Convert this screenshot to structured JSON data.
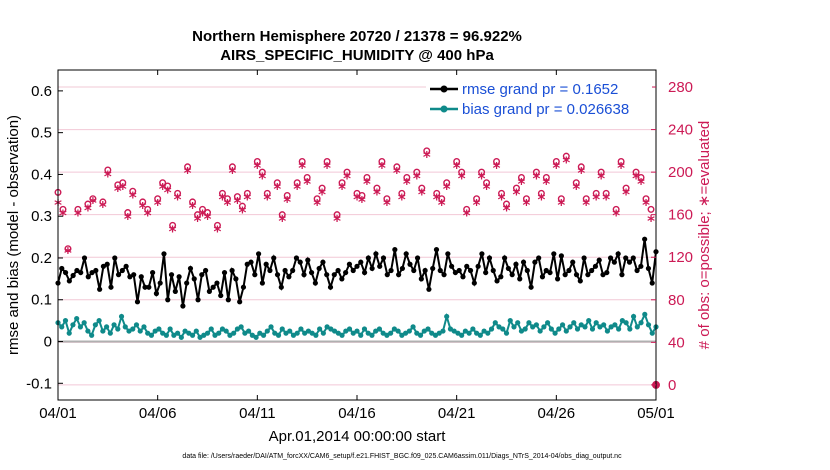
{
  "chart_data": {
    "type": "line",
    "title": "Northern Hemisphere 20720 / 21378 = 96.922%",
    "subtitle": "AIRS_SPECIFIC_HUMIDITY @ 400 hPa",
    "xlabel": "Apr.01,2014 00:00:00 start",
    "ylabel": "rmse and bias (model - observation)",
    "y2label": "# of obs: o=possible; ∗=evaluated",
    "footnote": "data file: /Users/raeder/DAI/ATM_forcXX/CAM6_setup/f.e21.FHIST_BGC.f09_025.CAM6assim.011/Diags_NTrS_2014-04/obs_diag_output.nc",
    "xlim": [
      0,
      30
    ],
    "ylim": [
      -0.14,
      0.65
    ],
    "y2lim": [
      -14.2,
      296
    ],
    "x_ticks": [
      0,
      5,
      10,
      15,
      20,
      25,
      30
    ],
    "x_tick_labels": [
      "04/01",
      "04/06",
      "04/11",
      "04/16",
      "04/21",
      "04/26",
      "05/01"
    ],
    "y_ticks": [
      -0.1,
      0,
      0.1,
      0.2,
      0.3,
      0.4,
      0.5,
      0.6
    ],
    "y_tick_labels": [
      "-0.1",
      "0",
      "0.1",
      "0.2",
      "0.3",
      "0.4",
      "0.5",
      "0.6"
    ],
    "y2_ticks": [
      0,
      40,
      80,
      120,
      160,
      200,
      240,
      280
    ],
    "y2_tick_labels": [
      "0",
      "40",
      "80",
      "120",
      "160",
      "200",
      "240",
      "280"
    ],
    "legend_position": "top-right",
    "colors": {
      "rmse": "#000000",
      "bias": "#0f8a8a",
      "obs": "#cc1a55",
      "zero_line": "#b0b0b0",
      "grid": "#f2c8d6",
      "legend_text": "#1a4fd6"
    },
    "series": [
      {
        "name": "rmse grand pr = 0.1652",
        "color": "#000000",
        "axis": "left",
        "values": [
          0.14,
          0.175,
          0.165,
          0.145,
          0.158,
          0.17,
          0.165,
          0.2,
          0.155,
          0.165,
          0.17,
          0.125,
          0.18,
          0.185,
          0.13,
          0.2,
          0.16,
          0.17,
          0.18,
          0.155,
          0.16,
          0.095,
          0.155,
          0.13,
          0.13,
          0.165,
          0.115,
          0.14,
          0.21,
          0.1,
          0.16,
          0.12,
          0.155,
          0.085,
          0.14,
          0.175,
          0.15,
          0.1,
          0.16,
          0.17,
          0.12,
          0.13,
          0.14,
          0.11,
          0.165,
          0.1,
          0.17,
          0.15,
          0.095,
          0.13,
          0.185,
          0.19,
          0.16,
          0.21,
          0.14,
          0.185,
          0.17,
          0.2,
          0.16,
          0.13,
          0.17,
          0.155,
          0.17,
          0.2,
          0.19,
          0.16,
          0.195,
          0.165,
          0.14,
          0.175,
          0.19,
          0.16,
          0.13,
          0.16,
          0.17,
          0.15,
          0.165,
          0.185,
          0.17,
          0.18,
          0.19,
          0.165,
          0.2,
          0.175,
          0.21,
          0.18,
          0.2,
          0.16,
          0.17,
          0.22,
          0.16,
          0.175,
          0.21,
          0.185,
          0.17,
          0.2,
          0.15,
          0.17,
          0.125,
          0.175,
          0.22,
          0.17,
          0.16,
          0.21,
          0.18,
          0.165,
          0.17,
          0.155,
          0.18,
          0.17,
          0.14,
          0.18,
          0.21,
          0.165,
          0.2,
          0.17,
          0.145,
          0.155,
          0.2,
          0.175,
          0.16,
          0.185,
          0.15,
          0.19,
          0.17,
          0.13,
          0.19,
          0.2,
          0.155,
          0.17,
          0.165,
          0.21,
          0.15,
          0.205,
          0.16,
          0.17,
          0.19,
          0.16,
          0.145,
          0.2,
          0.16,
          0.17,
          0.18,
          0.195,
          0.16,
          0.165,
          0.2,
          0.19,
          0.21,
          0.16,
          0.2,
          0.19,
          0.2,
          0.17,
          0.18,
          0.245,
          0.175,
          0.14,
          0.215
        ]
      },
      {
        "name": "bias grand pr = 0.026638",
        "color": "#0f8a8a",
        "axis": "left",
        "values": [
          0.045,
          0.035,
          0.05,
          0.02,
          0.04,
          0.055,
          0.035,
          0.045,
          0.025,
          0.015,
          0.04,
          0.05,
          0.025,
          0.035,
          0.02,
          0.04,
          0.03,
          0.06,
          0.035,
          0.025,
          0.03,
          0.04,
          0.025,
          0.035,
          0.02,
          0.015,
          0.025,
          0.03,
          0.02,
          0.015,
          0.03,
          0.015,
          0.02,
          0.01,
          0.025,
          0.02,
          0.015,
          0.025,
          0.01,
          0.015,
          0.02,
          0.03,
          0.015,
          0.02,
          0.03,
          0.025,
          0.015,
          0.02,
          0.03,
          0.035,
          0.02,
          0.025,
          0.015,
          0.01,
          0.02,
          0.015,
          0.025,
          0.035,
          0.02,
          0.015,
          0.03,
          0.02,
          0.025,
          0.015,
          0.02,
          0.03,
          0.02,
          0.025,
          0.02,
          0.015,
          0.03,
          0.02,
          0.035,
          0.03,
          0.025,
          0.02,
          0.015,
          0.025,
          0.03,
          0.02,
          0.025,
          0.015,
          0.03,
          0.02,
          0.015,
          0.025,
          0.03,
          0.02,
          0.015,
          0.02,
          0.03,
          0.025,
          0.015,
          0.02,
          0.025,
          0.035,
          0.02,
          0.015,
          0.025,
          0.03,
          0.02,
          0.015,
          0.02,
          0.025,
          0.06,
          0.03,
          0.025,
          0.02,
          0.015,
          0.025,
          0.02,
          0.03,
          0.02,
          0.015,
          0.025,
          0.02,
          0.03,
          0.045,
          0.035,
          0.03,
          0.02,
          0.05,
          0.035,
          0.045,
          0.025,
          0.03,
          0.045,
          0.035,
          0.04,
          0.025,
          0.035,
          0.045,
          0.03,
          0.02,
          0.03,
          0.04,
          0.025,
          0.035,
          0.045,
          0.03,
          0.04,
          0.035,
          0.05,
          0.03,
          0.045,
          0.035,
          0.04,
          0.025,
          0.035,
          0.04,
          0.03,
          0.05,
          0.045,
          0.03,
          0.06,
          0.035,
          0.045,
          0.065,
          0.04,
          0.02,
          0.035
        ]
      },
      {
        "name": "possible",
        "marker": "o",
        "color": "#cc1a55",
        "axis": "right",
        "x": [
          0,
          0.25,
          0.5,
          1,
          1.5,
          1.75,
          2.25,
          2.5,
          3,
          3.25,
          3.5,
          3.75,
          4.25,
          4.5,
          5,
          5.25,
          5.5,
          5.75,
          6,
          6.5,
          6.75,
          7,
          7.25,
          7.5,
          8,
          8.25,
          8.5,
          8.75,
          9,
          9.25,
          9.5,
          10,
          10.25,
          10.5,
          11,
          11.25,
          11.5,
          12,
          12.25,
          12.5,
          13,
          13.25,
          13.5,
          14,
          14.25,
          14.5,
          15,
          15.25,
          15.5,
          16,
          16.25,
          16.5,
          17,
          17.25,
          17.5,
          18,
          18.25,
          18.5,
          19,
          19.25,
          19.5,
          20,
          20.25,
          20.5,
          21,
          21.25,
          21.5,
          22,
          22.25,
          22.5,
          23,
          23.25,
          23.5,
          24,
          24.25,
          24.5,
          25,
          25.25,
          25.5,
          26,
          26.25,
          26.5,
          27,
          27.25,
          27.5,
          28,
          28.25,
          28.5,
          29,
          29.25,
          29.5,
          29.75
        ],
        "values": [
          181,
          165,
          128,
          165,
          170,
          175,
          172,
          202,
          188,
          190,
          162,
          182,
          172,
          165,
          175,
          190,
          187,
          150,
          180,
          205,
          172,
          160,
          165,
          162,
          150,
          180,
          175,
          205,
          177,
          168,
          180,
          210,
          200,
          180,
          190,
          160,
          178,
          190,
          210,
          195,
          175,
          185,
          210,
          160,
          190,
          200,
          180,
          178,
          195,
          185,
          210,
          175,
          205,
          180,
          195,
          200,
          185,
          220,
          180,
          175,
          190,
          210,
          200,
          165,
          175,
          200,
          190,
          210,
          180,
          170,
          185,
          195,
          175,
          200,
          180,
          195,
          210,
          175,
          215,
          190,
          205,
          175,
          180,
          200,
          180,
          165,
          210,
          185,
          200,
          195,
          175,
          165
        ]
      },
      {
        "name": "evaluated",
        "marker": "*",
        "color": "#cc1a55",
        "axis": "right",
        "x": [
          0,
          0.25,
          0.5,
          1,
          1.5,
          1.75,
          2.25,
          2.5,
          3,
          3.25,
          3.5,
          3.75,
          4.25,
          4.5,
          5,
          5.25,
          5.5,
          5.75,
          6,
          6.5,
          6.75,
          7,
          7.25,
          7.5,
          8,
          8.25,
          8.5,
          8.75,
          9,
          9.25,
          9.5,
          10,
          10.25,
          10.5,
          11,
          11.25,
          11.5,
          12,
          12.25,
          12.5,
          13,
          13.25,
          13.5,
          14,
          14.25,
          14.5,
          15,
          15.25,
          15.5,
          16,
          16.25,
          16.5,
          17,
          17.25,
          17.5,
          18,
          18.25,
          18.5,
          19,
          19.25,
          19.5,
          20,
          20.25,
          20.5,
          21,
          21.25,
          21.5,
          22,
          22.25,
          22.5,
          23,
          23.25,
          23.5,
          24,
          24.25,
          24.5,
          25,
          25.25,
          25.5,
          26,
          26.25,
          26.5,
          27,
          27.25,
          27.5,
          28,
          28.25,
          28.5,
          29,
          29.25,
          29.5,
          29.75
        ],
        "values": [
          170,
          160,
          125,
          160,
          165,
          172,
          168,
          197,
          183,
          185,
          157,
          177,
          167,
          160,
          170,
          185,
          182,
          145,
          175,
          200,
          167,
          155,
          160,
          157,
          145,
          175,
          170,
          200,
          172,
          163,
          175,
          205,
          195,
          175,
          185,
          155,
          173,
          185,
          205,
          190,
          170,
          180,
          205,
          155,
          185,
          195,
          175,
          173,
          190,
          180,
          205,
          170,
          200,
          175,
          190,
          195,
          180,
          215,
          175,
          170,
          185,
          205,
          195,
          160,
          170,
          195,
          185,
          205,
          175,
          165,
          180,
          190,
          170,
          195,
          175,
          190,
          205,
          170,
          210,
          185,
          200,
          170,
          175,
          195,
          175,
          160,
          205,
          180,
          195,
          190,
          170,
          155
        ]
      }
    ]
  }
}
